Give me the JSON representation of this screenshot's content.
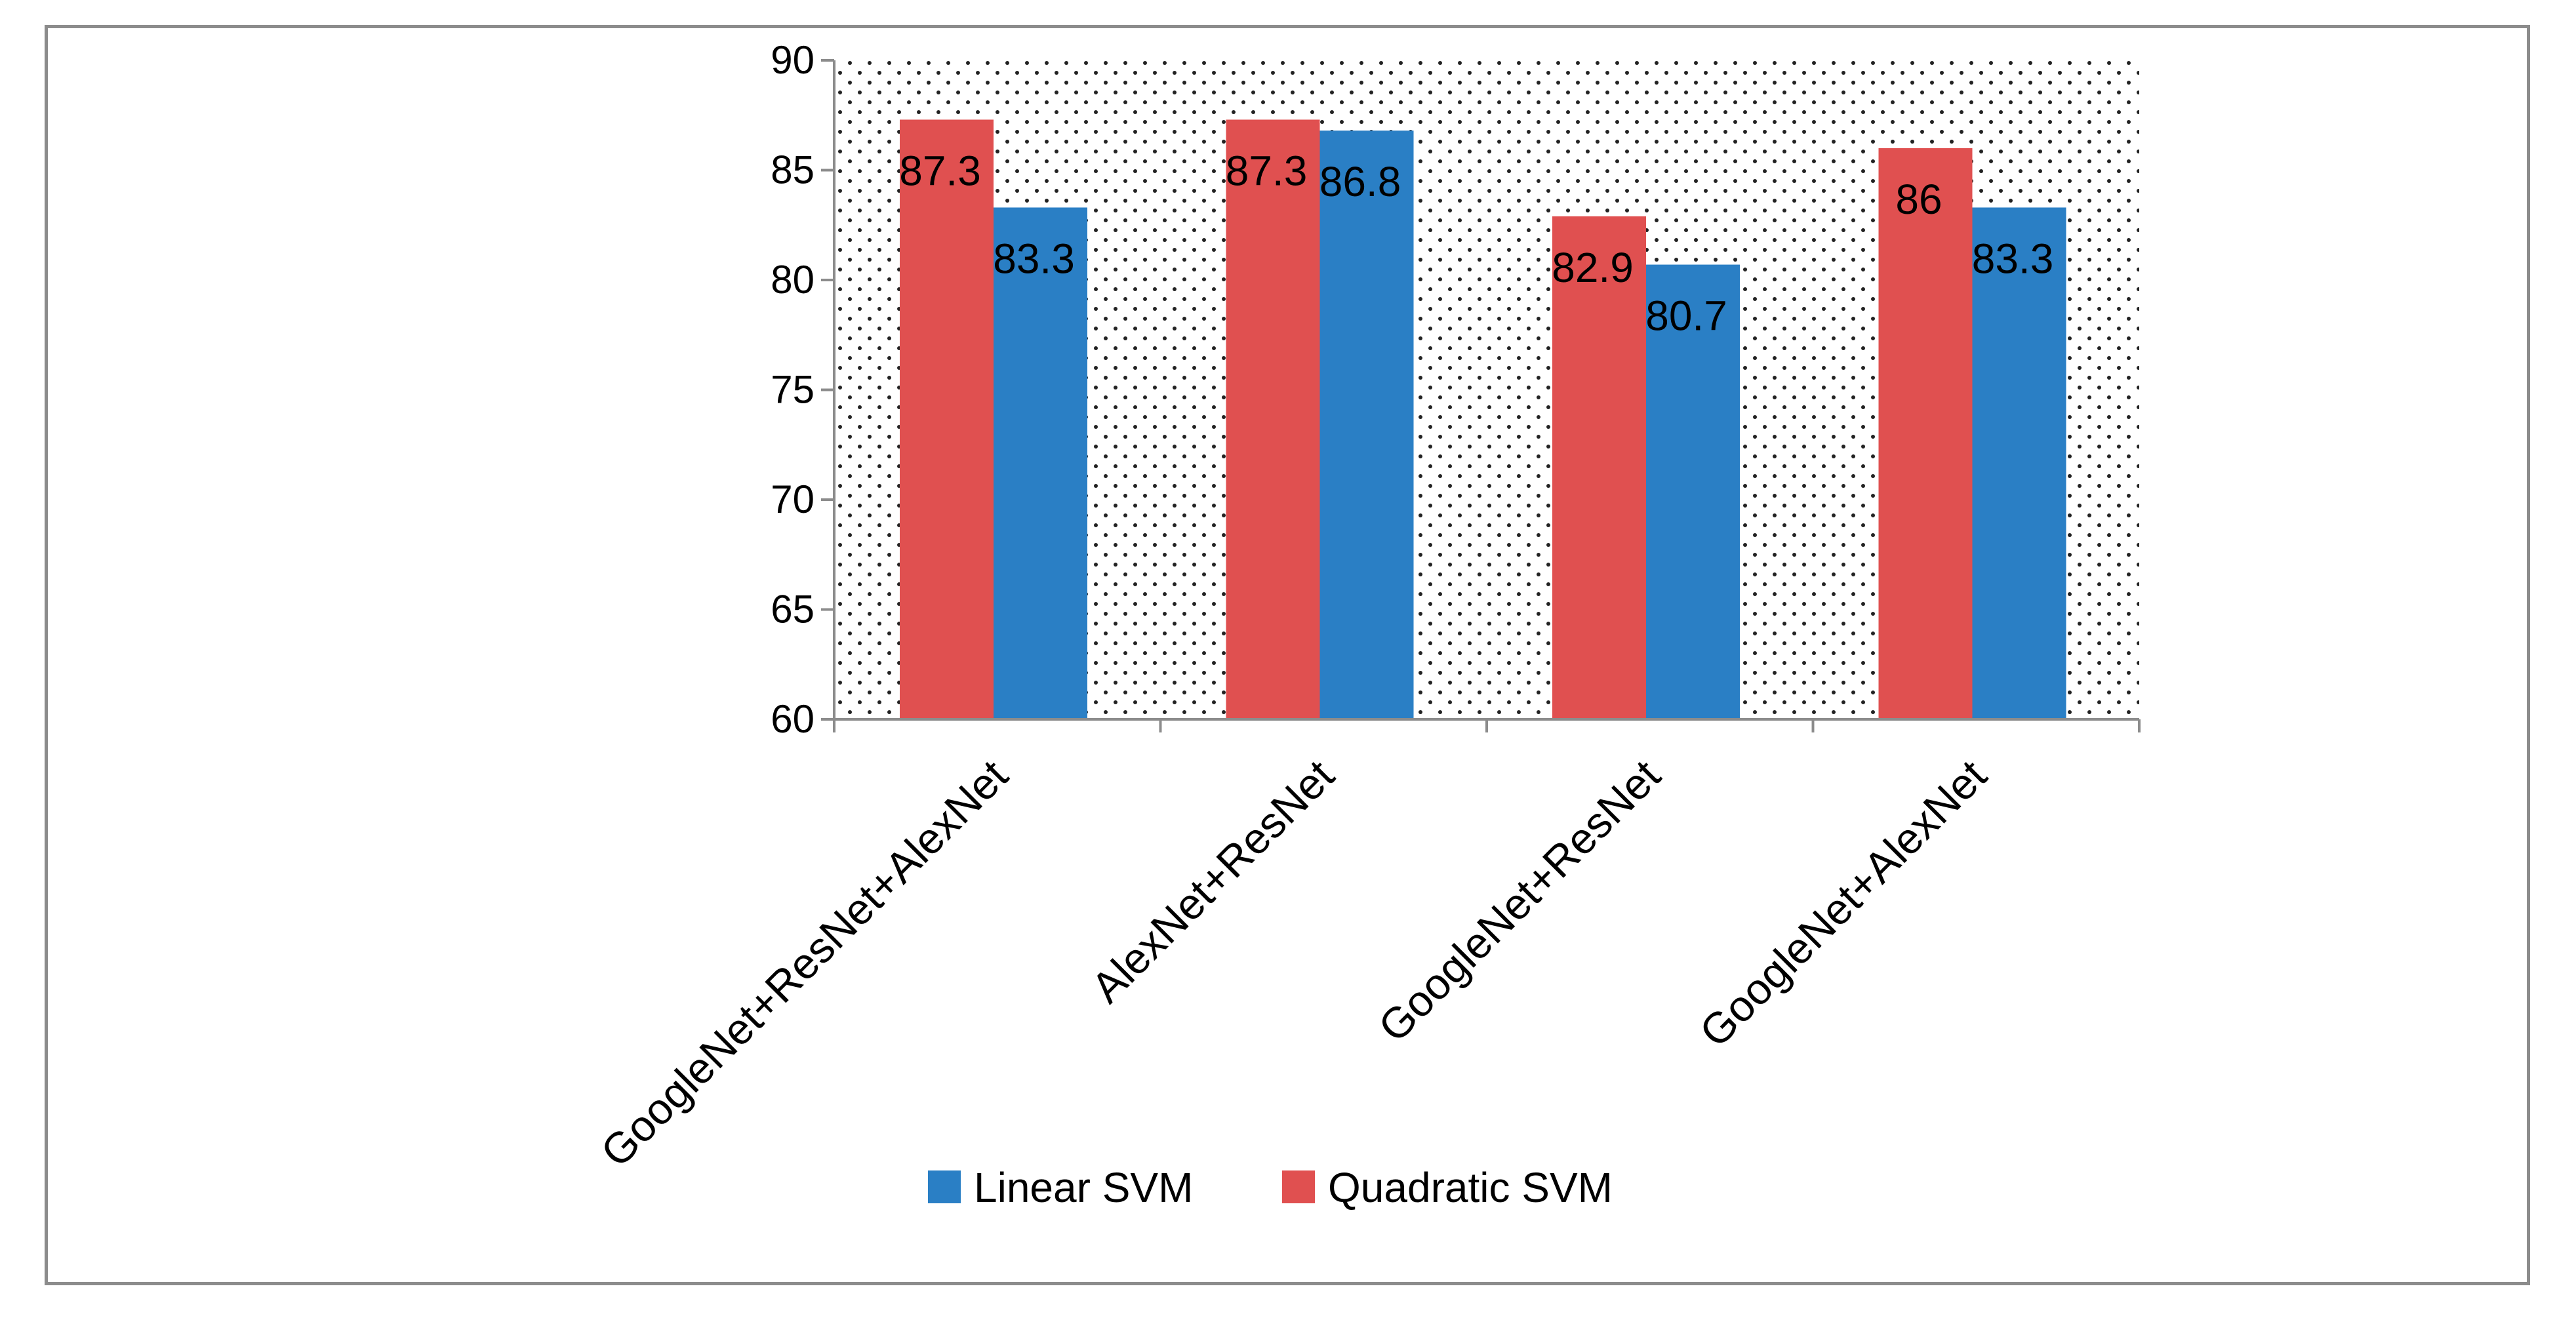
{
  "chart_data": {
    "type": "bar",
    "title": "",
    "xlabel": "",
    "ylabel": "",
    "ylim": [
      60,
      90
    ],
    "yticks": [
      60,
      65,
      70,
      75,
      80,
      85,
      90
    ],
    "categories": [
      "GoogleNet+ResNet+AlexNet",
      "AlexNet+ResNet",
      "GoogleNet+ResNet",
      "GoogleNet+AlexNet"
    ],
    "series": [
      {
        "name": "Quadratic SVM",
        "color": "#e05050",
        "values": [
          87.3,
          87.3,
          82.9,
          86
        ]
      },
      {
        "name": "Linear SVM",
        "color": "#2a7fc5",
        "values": [
          83.3,
          86.8,
          80.7,
          83.3
        ]
      }
    ],
    "legend": {
      "position": "bottom",
      "order": [
        "Linear SVM",
        "Quadratic SVM"
      ]
    },
    "background_pattern": "dotted",
    "grid": false
  }
}
